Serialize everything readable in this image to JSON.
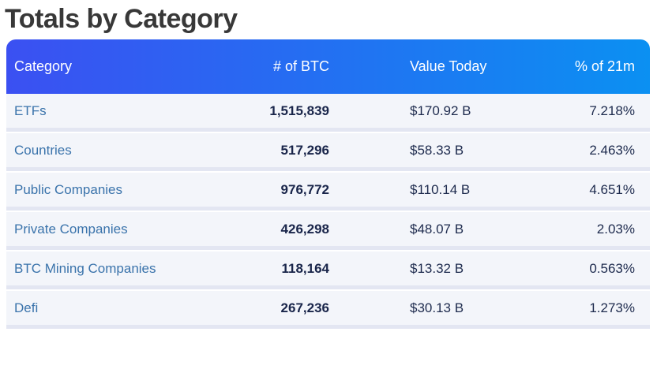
{
  "chart_data": {
    "type": "table",
    "title": "Totals by Category",
    "columns": [
      "Category",
      "# of BTC",
      "Value Today",
      "% of 21m"
    ],
    "rows": [
      {
        "category": "ETFs",
        "btc": "1,515,839",
        "value_today": "$170.92 B",
        "pct_of_21m": "7.218%"
      },
      {
        "category": "Countries",
        "btc": "517,296",
        "value_today": "$58.33 B",
        "pct_of_21m": "2.463%"
      },
      {
        "category": "Public Companies",
        "btc": "976,772",
        "value_today": "$110.14 B",
        "pct_of_21m": "4.651%"
      },
      {
        "category": "Private Companies",
        "btc": "426,298",
        "value_today": "$48.07 B",
        "pct_of_21m": "2.03%"
      },
      {
        "category": "BTC Mining Companies",
        "btc": "118,164",
        "value_today": "$13.32 B",
        "pct_of_21m": "0.563%"
      },
      {
        "category": "Defi",
        "btc": "267,236",
        "value_today": "$30.13 B",
        "pct_of_21m": "1.273%"
      }
    ],
    "layout": {
      "legend": "none",
      "grid": "row-dividers",
      "header_position": "top"
    }
  },
  "style": {
    "title_text_color": "#383838",
    "header_gradient_left": "#3b50f2",
    "header_gradient_right": "#0b90f2",
    "header_text_color": "#ffffff",
    "row_background": "#f3f5fa",
    "divider_color": "#e3e6f2",
    "category_link_color": "#3a73ab",
    "number_text_color": "#19254a",
    "page_background": "#ffffff"
  }
}
